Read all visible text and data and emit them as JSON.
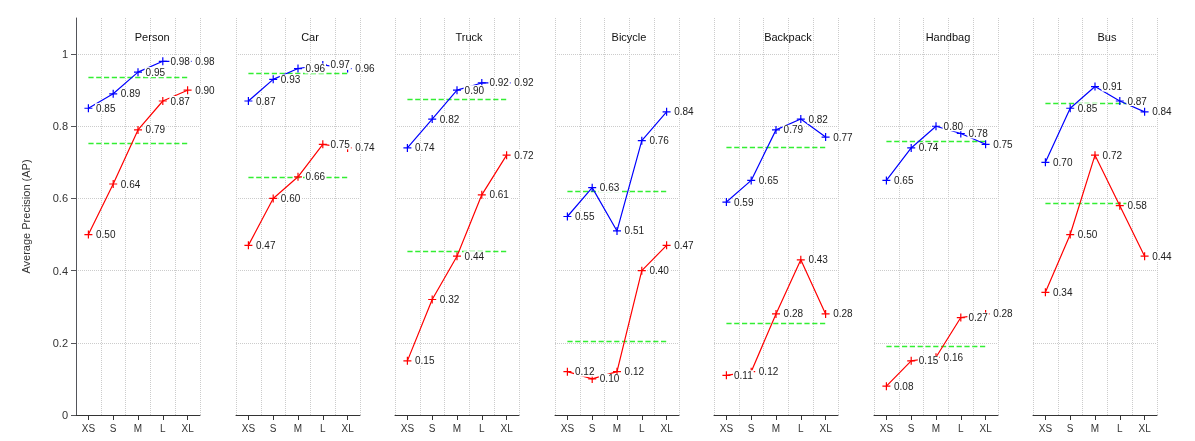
{
  "chart_data": [
    {
      "type": "line",
      "title": "Person",
      "ylabel": "Average Precision (AP)",
      "categories": [
        "XS",
        "S",
        "M",
        "L",
        "XL"
      ],
      "ylim": [
        0,
        1.1
      ],
      "yticks": [
        0,
        0.2,
        0.4,
        0.6,
        0.8,
        1
      ],
      "grid": true,
      "marker": "cross",
      "line_style": "solid",
      "series": [
        {
          "color": "#0000ff",
          "values": [
            0.85,
            0.89,
            0.95,
            0.98,
            0.98
          ],
          "value_labels": [
            "0.85",
            "0.89",
            "0.95",
            "0.98",
            "0.98"
          ]
        },
        {
          "color": "#ff0000",
          "values": [
            0.5,
            0.64,
            0.79,
            0.87,
            0.9
          ],
          "value_labels": [
            "0.50",
            "0.64",
            "0.79",
            "0.87",
            "0.90"
          ]
        }
      ],
      "ref_lines": [
        {
          "axis": "y",
          "value": 0.937,
          "color": "#33ee33",
          "line_style": "dashed"
        },
        {
          "axis": "y",
          "value": 0.753,
          "color": "#33ee33",
          "line_style": "dashed"
        }
      ]
    },
    {
      "type": "line",
      "title": "Car",
      "categories": [
        "XS",
        "S",
        "M",
        "L",
        "XL"
      ],
      "ylim": [
        0,
        1.1
      ],
      "yticks": [
        0,
        0.2,
        0.4,
        0.6,
        0.8,
        1
      ],
      "tick_labels": "x",
      "grid": true,
      "marker": "cross",
      "line_style": "solid",
      "series": [
        {
          "color": "#0000ff",
          "values": [
            0.87,
            0.93,
            0.96,
            0.97,
            0.96
          ],
          "value_labels": [
            "0.87",
            "0.93",
            "0.96",
            "0.97",
            "0.96"
          ]
        },
        {
          "color": "#ff0000",
          "values": [
            0.47,
            0.6,
            0.66,
            0.75,
            0.74
          ],
          "value_labels": [
            "0.47",
            "0.60",
            "0.66",
            "0.75",
            "0.74"
          ]
        }
      ],
      "ref_lines": [
        {
          "axis": "y",
          "value": 0.947,
          "color": "#33ee33",
          "line_style": "dashed"
        },
        {
          "axis": "y",
          "value": 0.66,
          "color": "#33ee33",
          "line_style": "dashed"
        }
      ]
    },
    {
      "type": "line",
      "title": "Truck",
      "categories": [
        "XS",
        "S",
        "M",
        "L",
        "XL"
      ],
      "ylim": [
        0,
        1.1
      ],
      "yticks": [
        0,
        0.2,
        0.4,
        0.6,
        0.8,
        1
      ],
      "tick_labels": "x",
      "grid": true,
      "marker": "cross",
      "line_style": "solid",
      "series": [
        {
          "color": "#0000ff",
          "values": [
            0.74,
            0.82,
            0.9,
            0.92,
            0.92
          ],
          "value_labels": [
            "0.74",
            "0.82",
            "0.90",
            "0.92",
            "0.92"
          ]
        },
        {
          "color": "#ff0000",
          "values": [
            0.15,
            0.32,
            0.44,
            0.61,
            0.72
          ],
          "value_labels": [
            "0.15",
            "0.32",
            "0.44",
            "0.61",
            "0.72"
          ]
        }
      ],
      "ref_lines": [
        {
          "axis": "y",
          "value": 0.876,
          "color": "#33ee33",
          "line_style": "dashed"
        },
        {
          "axis": "y",
          "value": 0.455,
          "color": "#33ee33",
          "line_style": "dashed"
        }
      ]
    },
    {
      "type": "line",
      "title": "Bicycle",
      "categories": [
        "XS",
        "S",
        "M",
        "L",
        "XL"
      ],
      "ylim": [
        0,
        1.1
      ],
      "yticks": [
        0,
        0.2,
        0.4,
        0.6,
        0.8,
        1
      ],
      "tick_labels": "x",
      "grid": true,
      "marker": "cross",
      "line_style": "solid",
      "series": [
        {
          "color": "#0000ff",
          "values": [
            0.55,
            0.63,
            0.51,
            0.76,
            0.84
          ],
          "value_labels": [
            "0.55",
            "0.63",
            "0.51",
            "0.76",
            "0.84"
          ]
        },
        {
          "color": "#ff0000",
          "values": [
            0.12,
            0.1,
            0.12,
            0.4,
            0.47
          ],
          "value_labels": [
            "0.12",
            "0.10",
            "0.12",
            "0.40",
            "0.47"
          ]
        }
      ],
      "ref_lines": [
        {
          "axis": "y",
          "value": 0.621,
          "color": "#33ee33",
          "line_style": "dashed"
        },
        {
          "axis": "y",
          "value": 0.205,
          "color": "#33ee33",
          "line_style": "dashed"
        }
      ]
    },
    {
      "type": "line",
      "title": "Backpack",
      "categories": [
        "XS",
        "S",
        "M",
        "L",
        "XL"
      ],
      "ylim": [
        0,
        1.1
      ],
      "yticks": [
        0,
        0.2,
        0.4,
        0.6,
        0.8,
        1
      ],
      "tick_labels": "x",
      "grid": true,
      "marker": "cross",
      "line_style": "solid",
      "series": [
        {
          "color": "#0000ff",
          "values": [
            0.59,
            0.65,
            0.79,
            0.82,
            0.77
          ],
          "value_labels": [
            "0.59",
            "0.65",
            "0.79",
            "0.82",
            "0.77"
          ]
        },
        {
          "color": "#ff0000",
          "values": [
            0.11,
            0.12,
            0.28,
            0.43,
            0.28
          ],
          "value_labels": [
            "0.11",
            "0.12",
            "0.28",
            "0.43",
            "0.28"
          ]
        }
      ],
      "ref_lines": [
        {
          "axis": "y",
          "value": 0.742,
          "color": "#33ee33",
          "line_style": "dashed"
        },
        {
          "axis": "y",
          "value": 0.255,
          "color": "#33ee33",
          "line_style": "dashed"
        }
      ]
    },
    {
      "type": "line",
      "title": "Handbag",
      "categories": [
        "XS",
        "S",
        "M",
        "L",
        "XL"
      ],
      "ylim": [
        0,
        1.1
      ],
      "yticks": [
        0,
        0.2,
        0.4,
        0.6,
        0.8,
        1
      ],
      "tick_labels": "x",
      "grid": true,
      "marker": "cross",
      "line_style": "solid",
      "series": [
        {
          "color": "#0000ff",
          "values": [
            0.65,
            0.74,
            0.8,
            0.78,
            0.75
          ],
          "value_labels": [
            "0.65",
            "0.74",
            "0.80",
            "0.78",
            "0.75"
          ]
        },
        {
          "color": "#ff0000",
          "values": [
            0.08,
            0.15,
            0.16,
            0.27,
            0.28
          ],
          "value_labels": [
            "0.08",
            "0.15",
            "0.16",
            "0.27",
            "0.28"
          ]
        }
      ],
      "ref_lines": [
        {
          "axis": "y",
          "value": 0.758,
          "color": "#33ee33",
          "line_style": "dashed"
        },
        {
          "axis": "y",
          "value": 0.19,
          "color": "#33ee33",
          "line_style": "dashed"
        }
      ]
    },
    {
      "type": "line",
      "title": "Bus",
      "categories": [
        "XS",
        "S",
        "M",
        "L",
        "XL"
      ],
      "ylim": [
        0,
        1.1
      ],
      "yticks": [
        0,
        0.2,
        0.4,
        0.6,
        0.8,
        1
      ],
      "tick_labels": "x",
      "grid": true,
      "marker": "cross",
      "line_style": "solid",
      "series": [
        {
          "color": "#0000ff",
          "values": [
            0.7,
            0.85,
            0.91,
            0.87,
            0.84
          ],
          "value_labels": [
            "0.70",
            "0.85",
            "0.91",
            "0.87",
            "0.84"
          ]
        },
        {
          "color": "#ff0000",
          "values": [
            0.34,
            0.5,
            0.72,
            0.58,
            0.44
          ],
          "value_labels": [
            "0.34",
            "0.50",
            "0.72",
            "0.58",
            "0.44"
          ]
        }
      ],
      "ref_lines": [
        {
          "axis": "y",
          "value": 0.863,
          "color": "#33ee33",
          "line_style": "dashed"
        },
        {
          "axis": "y",
          "value": 0.587,
          "color": "#33ee33",
          "line_style": "dashed"
        }
      ]
    }
  ]
}
